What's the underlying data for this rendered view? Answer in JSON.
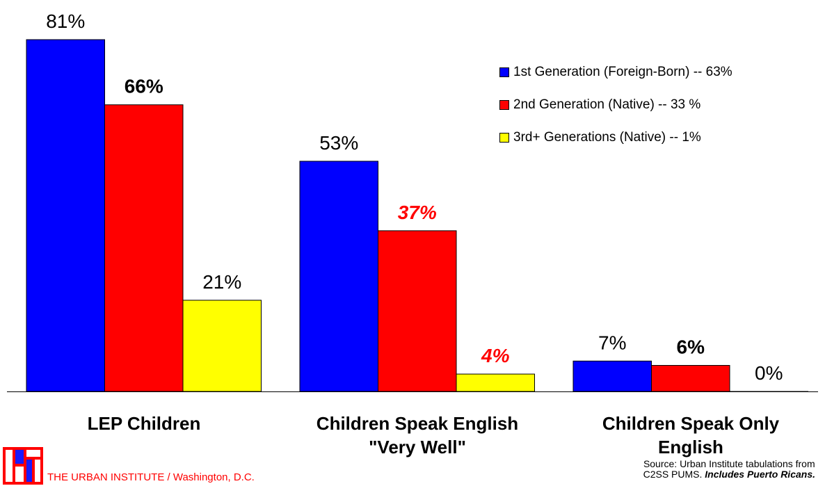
{
  "chart_data": {
    "type": "bar",
    "categories": [
      "LEP Children",
      "Children Speak English\n\"Very Well\"",
      "Children Speak Only\nEnglish"
    ],
    "series": [
      {
        "name": "1st Generation (Foreign-Born) -- 63%",
        "color": "#0000ff",
        "values": [
          81,
          53,
          7
        ],
        "labels": [
          "81%",
          "53%",
          "7%"
        ]
      },
      {
        "name": "2nd Generation (Native) -- 33 %",
        "color": "#ff0000",
        "values": [
          66,
          37,
          6
        ],
        "labels": [
          "66%",
          "37%",
          "6%"
        ]
      },
      {
        "name": "3rd+ Generations (Native) -- 1%",
        "color": "#ffff00",
        "values": [
          21,
          4,
          0
        ],
        "labels": [
          "21%",
          "4%",
          "0%"
        ]
      }
    ],
    "label_styles": [
      [
        "normal",
        "bold",
        "normal"
      ],
      [
        "normal",
        "bold-italic-red",
        "bold-italic-red"
      ],
      [
        "normal",
        "bold",
        "normal"
      ]
    ],
    "ylim": [
      0,
      100
    ],
    "legend_position": "top-right",
    "grid": false
  },
  "footer": {
    "institute": "THE URBAN INSTITUTE / Washington, D.C.",
    "source_line1": "Source:  Urban Institute tabulations from",
    "source_line2_plain": "C2SS PUMS.  ",
    "source_line2_italic": "Includes Puerto Ricans."
  }
}
